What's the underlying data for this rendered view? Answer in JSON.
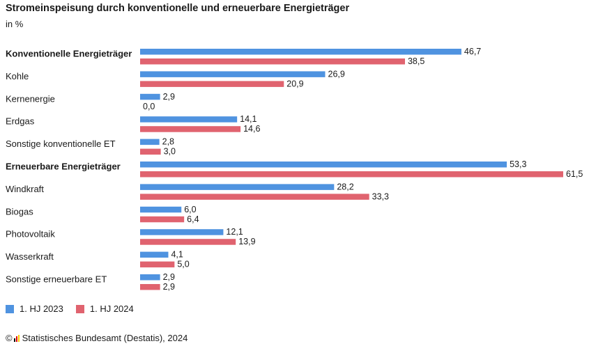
{
  "chart_data": {
    "type": "bar",
    "orientation": "horizontal",
    "title": "Stromeinspeisung durch konventionelle und erneuerbare Energieträger",
    "subtitle": "in %",
    "categories": [
      "Konventionelle Energieträger",
      "Kohle",
      "Kernenergie",
      "Erdgas",
      "Sonstige konventionelle ET",
      "Erneuerbare Energieträger",
      "Windkraft",
      "Biogas",
      "Photovoltaik",
      "Wasserkraft",
      "Sonstige erneuerbare ET"
    ],
    "bold_categories": [
      "Konventionelle Energieträger",
      "Erneuerbare Energieträger"
    ],
    "series": [
      {
        "name": "1. HJ 2023",
        "color": "#4f93e0",
        "values": [
          46.7,
          26.9,
          2.9,
          14.1,
          2.8,
          53.3,
          28.2,
          6.0,
          12.1,
          4.1,
          2.9
        ],
        "labels": [
          "46,7",
          "26,9",
          "2,9",
          "14,1",
          "2,8",
          "53,3",
          "28,2",
          "6,0",
          "12,1",
          "4,1",
          "2,9"
        ]
      },
      {
        "name": "1. HJ 2024",
        "color": "#e0636f",
        "values": [
          38.5,
          20.9,
          0.0,
          14.6,
          3.0,
          61.5,
          33.3,
          6.4,
          13.9,
          5.0,
          2.9
        ],
        "labels": [
          "38,5",
          "20,9",
          "0,0",
          "14,6",
          "3,0",
          "61,5",
          "33,3",
          "6,4",
          "13,9",
          "5,0",
          "2,9"
        ]
      }
    ],
    "xlim": [
      0,
      61.5
    ],
    "grid": false,
    "legend_position": "bottom-left"
  },
  "source": {
    "copyright": "©",
    "text": "Statistisches Bundesamt (Destatis), 2024",
    "logo_colors": [
      "#000000",
      "#dd0000",
      "#ffcc00"
    ]
  }
}
